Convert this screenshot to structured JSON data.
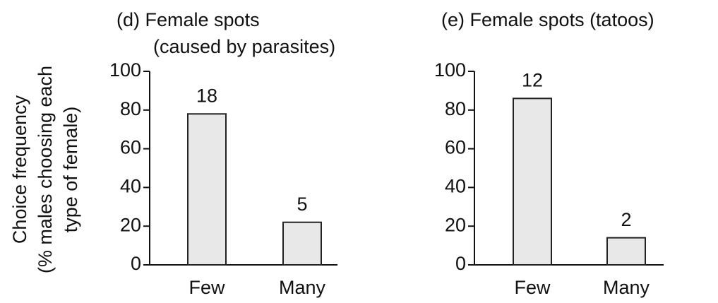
{
  "chart_data": [
    {
      "type": "bar",
      "title": [
        "(d) Female spots",
        "(caused by parasites)"
      ],
      "ylabel": [
        "Choice frequency",
        "(% males choosing each",
        "type of female)"
      ],
      "categories": [
        "Few",
        "Many"
      ],
      "values": [
        78,
        22
      ],
      "counts": [
        18,
        5
      ],
      "color": "#e8e8e8",
      "ylim": [
        0,
        100
      ],
      "yticks": [
        0,
        20,
        40,
        60,
        80,
        100
      ]
    },
    {
      "type": "bar",
      "title": [
        "(e) Female spots (tatoos)"
      ],
      "categories": [
        "Few",
        "Many"
      ],
      "values": [
        86,
        14
      ],
      "counts": [
        12,
        2
      ],
      "color": "#e8e8e8",
      "ylim": [
        0,
        100
      ],
      "yticks": [
        0,
        20,
        40,
        60,
        80,
        100
      ]
    }
  ]
}
